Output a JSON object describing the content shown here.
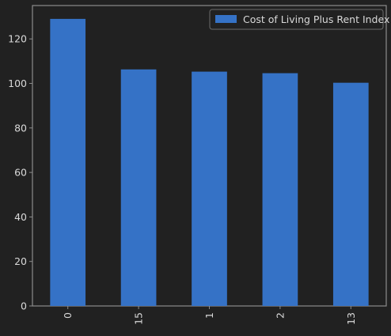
{
  "chart_data": {
    "type": "bar",
    "categories": [
      "0",
      "15",
      "1",
      "2",
      "13"
    ],
    "series": [
      {
        "name": "Cost of Living Plus Rent Index",
        "values": [
          129.0,
          106.3,
          105.3,
          104.6,
          100.3
        ]
      }
    ],
    "ylim": [
      0,
      135
    ],
    "yticks": [
      0,
      20,
      40,
      60,
      80,
      100,
      120
    ],
    "xlabel": "",
    "ylabel": "",
    "title": "",
    "grid": false,
    "legend_position": "top-right",
    "x_tick_rotation": 90,
    "colors": {
      "background": "#212121",
      "bar": "#3572c6",
      "axes_edge": "#8c8c8c",
      "text": "#d9d9d9"
    }
  }
}
